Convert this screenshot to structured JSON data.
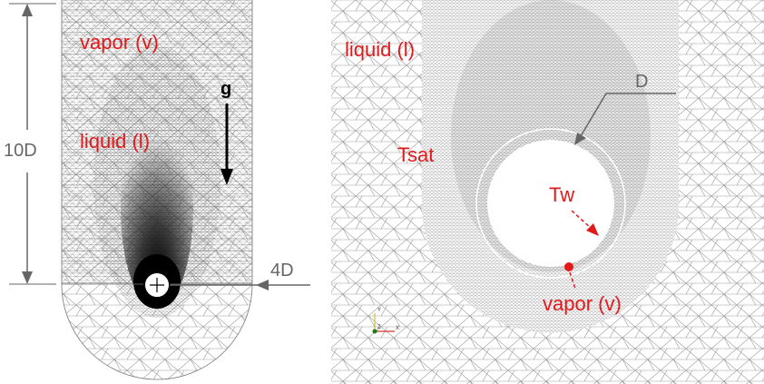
{
  "left_panel": {
    "top_region": "vapor (v)",
    "middle_region": "liquid (l)",
    "gravity": "g",
    "height_label": "10D",
    "offset_label": "4D"
  },
  "right_panel": {
    "outer_region": "liquid (l)",
    "diameter_label": "D",
    "saturation_label": "Tsat",
    "wall_label": "Tw",
    "vapor_label": "vapor (v)",
    "axes": {
      "y": "Y",
      "z": "Z",
      "x": "X"
    }
  }
}
